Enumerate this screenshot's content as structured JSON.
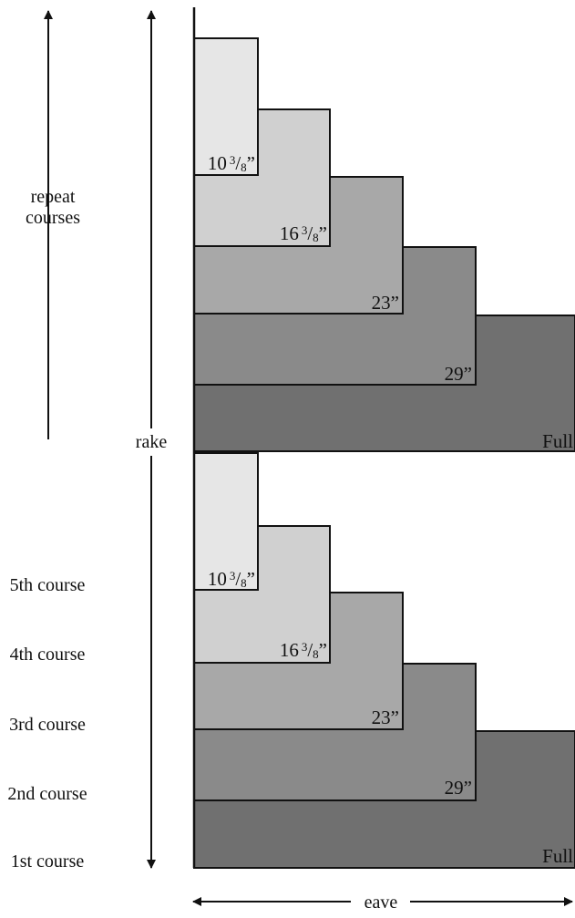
{
  "colors": {
    "course_1": "#707070",
    "course_2": "#8a8a8a",
    "course_3": "#a8a8a8",
    "course_4": "#d0d0d0",
    "course_5": "#e6e6e6",
    "line": "#111111"
  },
  "labels": {
    "repeat_line1": "repeat",
    "repeat_line2": "courses",
    "rake": "rake",
    "eave": "eave",
    "course_5": "5th course",
    "course_4": "4th course",
    "course_3": "3rd course",
    "course_2": "2nd course",
    "course_1": "1st course"
  },
  "shingle_widths": {
    "w1": "Full",
    "w2": "29”",
    "w3": "23”",
    "w4_whole": "16",
    "w5_whole": "10",
    "fraction_num": "3",
    "fraction_den": "8",
    "inch_mark": "”"
  }
}
